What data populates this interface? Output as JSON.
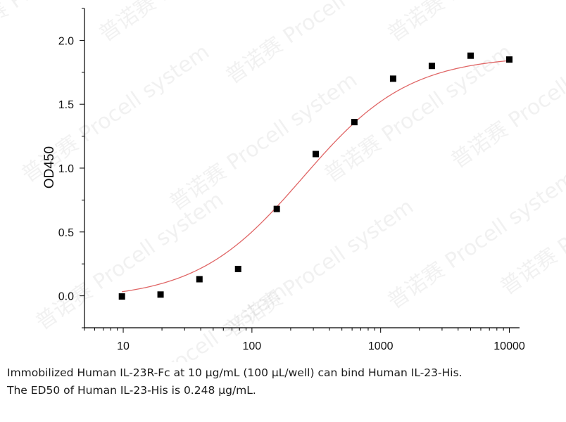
{
  "chart_data": {
    "type": "scatter",
    "title": "",
    "xlabel": "",
    "ylabel": "OD450",
    "xscale": "log",
    "xlim": [
      5,
      12000
    ],
    "ylim": [
      -0.25,
      2.25
    ],
    "xticks": [
      10,
      100,
      1000,
      10000
    ],
    "xtick_labels": [
      "10",
      "100",
      "1000",
      "10000"
    ],
    "yticks": [
      0.0,
      0.5,
      1.0,
      1.5,
      2.0
    ],
    "ytick_labels": [
      "0.0",
      "0.5",
      "1.0",
      "1.5",
      "2.0"
    ],
    "grid": false,
    "legend": "none",
    "series": [
      {
        "marker": "square",
        "color": "#000000",
        "x": [
          9.77,
          19.5,
          39.1,
          78.1,
          156,
          313,
          625,
          1250,
          2500,
          5000,
          10000
        ],
        "y": [
          -0.005,
          0.01,
          0.13,
          0.21,
          0.68,
          1.11,
          1.36,
          1.7,
          1.8,
          1.88,
          1.85
        ]
      }
    ],
    "fit": {
      "model": "4PL",
      "color": "#e06666",
      "bottom": -0.03,
      "top": 1.88,
      "ec50": 248,
      "hill": 1.05
    }
  },
  "caption": {
    "line1": "Immobilized Human IL-23R-Fc at 10 μg/mL (100 μL/well) can bind Human IL-23-His.",
    "line2": "The ED50 of Human IL-23-His is 0.248 μg/mL."
  },
  "watermark": {
    "text": "普诺赛 Procell system"
  }
}
